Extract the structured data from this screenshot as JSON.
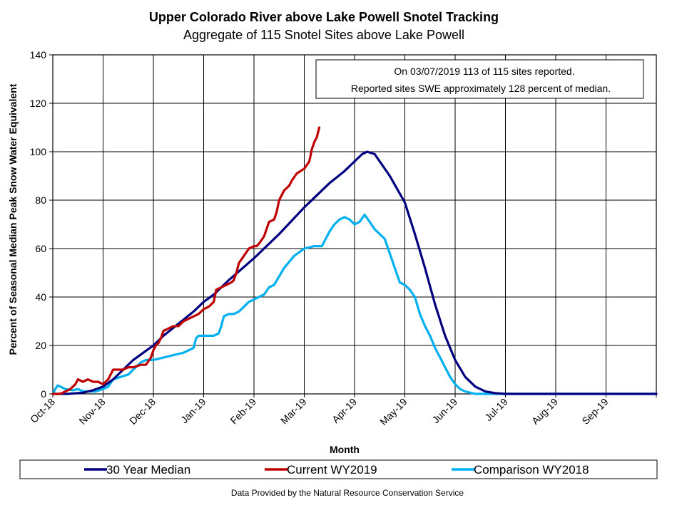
{
  "chart_data": {
    "type": "line",
    "title": "Upper Colorado River above Lake Powell Snotel Tracking",
    "subtitle": "Aggregate of 115 Snotel Sites above Lake Powell",
    "xlabel": "Month",
    "ylabel": "Percent of Seasonal Median Peak Snow Water Equivalent",
    "ylim": [
      0,
      140
    ],
    "yticks": [
      "0",
      "20",
      "40",
      "60",
      "80",
      "100",
      "120",
      "140"
    ],
    "xlim": [
      0,
      12
    ],
    "categories": [
      "Oct-18",
      "Nov-18",
      "Dec-18",
      "Jan-19",
      "Feb-19",
      "Mar-19",
      "Apr-19",
      "May-19",
      "Jun-19",
      "Jul-19",
      "Aug-19",
      "Sep-19"
    ],
    "grid": true,
    "annotation": {
      "line1": "On 03/07/2019 113 of 115 sites reported.",
      "line2": "Reported sites SWE approximately 128 percent of median."
    },
    "legend_position": "bottom",
    "source_note": "Data Provided by the Natural Resource Conservation Service",
    "series": [
      {
        "name": "30 Year Median",
        "color": "#000080",
        "x": [
          0,
          0.3,
          0.6,
          0.8,
          1.0,
          1.2,
          1.4,
          1.6,
          1.8,
          2.0,
          2.2,
          2.5,
          2.8,
          3.0,
          3.2,
          3.5,
          4.0,
          4.5,
          5.0,
          5.5,
          5.8,
          6.0,
          6.15,
          6.25,
          6.4,
          6.7,
          7.0,
          7.2,
          7.4,
          7.6,
          7.8,
          8.0,
          8.2,
          8.4,
          8.6,
          8.8,
          9.0,
          9.5,
          10,
          11,
          12
        ],
        "values": [
          0,
          0,
          0.5,
          1.5,
          3,
          6,
          10,
          14,
          17,
          20,
          24,
          29,
          34,
          38,
          41,
          47,
          56,
          66,
          77,
          87,
          92,
          96,
          99,
          100,
          99,
          90,
          79,
          66,
          52,
          37,
          24,
          14,
          7,
          3,
          1,
          0.3,
          0,
          0,
          0,
          0,
          0
        ]
      },
      {
        "name": "Current WY2019",
        "color": "#C00000",
        "x": [
          0,
          0.15,
          0.25,
          0.35,
          0.45,
          0.5,
          0.6,
          0.7,
          0.8,
          0.9,
          1.0,
          1.1,
          1.2,
          1.3,
          1.4,
          1.5,
          1.6,
          1.75,
          1.85,
          1.95,
          2.0,
          2.05,
          2.1,
          2.15,
          2.2,
          2.3,
          2.4,
          2.5,
          2.55,
          2.6,
          2.7,
          2.8,
          2.9,
          3.0,
          3.1,
          3.2,
          3.25,
          3.35,
          3.45,
          3.55,
          3.6,
          3.65,
          3.7,
          3.8,
          3.9,
          4.0,
          4.05,
          4.1,
          4.2,
          4.3,
          4.4,
          4.45,
          4.5,
          4.6,
          4.7,
          4.75,
          4.85,
          5.0,
          5.1,
          5.15,
          5.2,
          5.25,
          5.3
        ],
        "values": [
          0,
          0,
          1,
          2,
          4,
          6,
          5,
          6,
          5,
          5,
          4,
          6,
          10,
          10,
          10,
          11,
          11,
          12,
          12,
          15,
          18,
          20,
          21,
          23,
          26,
          27,
          28,
          28,
          29,
          30,
          31,
          32,
          33,
          35,
          36,
          38,
          43,
          44,
          45,
          46,
          47,
          50,
          54,
          57,
          60,
          61,
          61,
          62,
          65,
          71,
          72,
          75,
          80,
          84,
          86,
          88,
          91,
          93,
          96,
          101,
          104,
          106,
          110
        ]
      },
      {
        "name": "Comparison WY2018",
        "color": "#00B0F0",
        "x": [
          0,
          0.05,
          0.1,
          0.15,
          0.25,
          0.4,
          0.5,
          0.6,
          0.7,
          0.85,
          1.0,
          1.1,
          1.2,
          1.35,
          1.5,
          1.6,
          1.75,
          1.85,
          2.0,
          2.2,
          2.4,
          2.6,
          2.7,
          2.8,
          2.85,
          2.9,
          3.0,
          3.1,
          3.2,
          3.3,
          3.35,
          3.4,
          3.5,
          3.6,
          3.7,
          3.8,
          3.9,
          4.0,
          4.1,
          4.2,
          4.3,
          4.4,
          4.6,
          4.8,
          5.0,
          5.2,
          5.35,
          5.5,
          5.6,
          5.7,
          5.8,
          5.9,
          6.0,
          6.1,
          6.2,
          6.3,
          6.4,
          6.5,
          6.6,
          6.7,
          6.8,
          6.9,
          7.0,
          7.1,
          7.2,
          7.3,
          7.4,
          7.5,
          7.6,
          7.7,
          7.8,
          7.9,
          8.0,
          8.1,
          8.2,
          8.3,
          8.4,
          8.5,
          12
        ],
        "values": [
          0,
          2,
          3.5,
          3,
          2,
          1.5,
          2,
          1,
          1,
          1,
          2,
          3,
          6,
          7,
          8,
          10,
          13,
          14,
          14,
          15,
          16,
          17,
          18,
          19,
          23,
          24,
          24,
          24,
          24,
          25,
          28,
          32,
          33,
          33,
          34,
          36,
          38,
          39,
          40,
          41,
          44,
          45,
          52,
          57,
          60,
          61,
          61,
          67,
          70,
          72,
          73,
          72,
          70,
          71,
          74,
          71,
          68,
          66,
          64,
          58,
          52,
          46,
          45,
          43,
          40,
          33,
          28,
          24,
          19,
          15,
          11,
          7,
          4,
          2,
          1,
          0.5,
          0,
          0,
          0
        ]
      }
    ]
  }
}
